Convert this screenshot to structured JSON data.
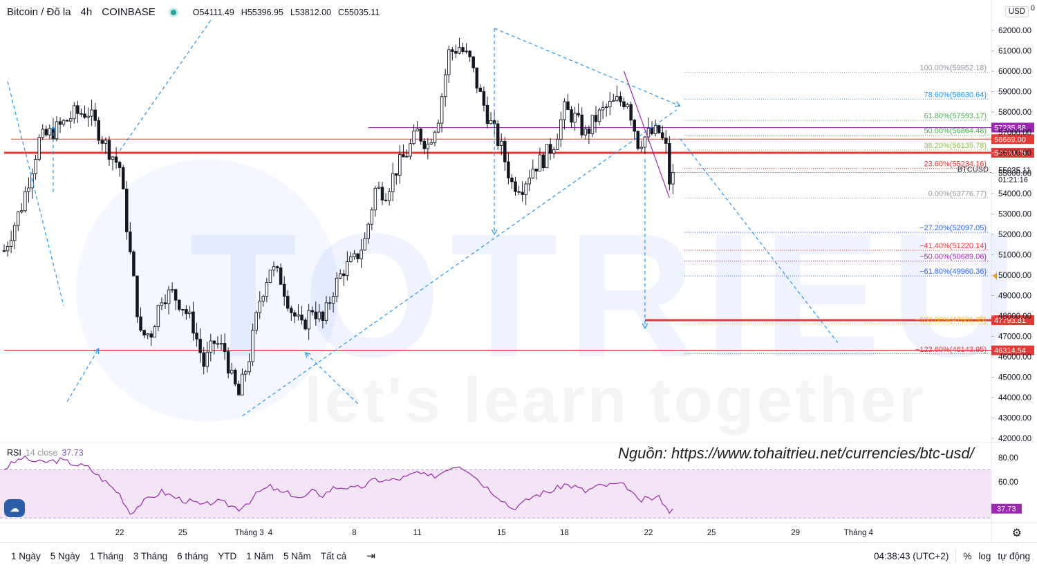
{
  "header": {
    "title": "Bitcoin / Đô la",
    "interval": "4h",
    "exchange": "COINBASE",
    "ohlc": [
      {
        "k": "O",
        "v": "54111.49"
      },
      {
        "k": "H",
        "v": "55396.95"
      },
      {
        "k": "L",
        "v": "53812.00"
      },
      {
        "k": "C",
        "v": "55035.11"
      }
    ],
    "currency": "USD",
    "currency_suffix": "0"
  },
  "watermark": {
    "brand": "TOTRIEU",
    "slogan": "let's learn together"
  },
  "source_note": "Nguồn: https://www.tohaitrieu.net/currencies/btc-usd/",
  "colors": {
    "up": "#ffffff",
    "down": "#131722",
    "level_red": "#e53935",
    "fib_blue": "#2962ff",
    "trend_blue": "#2196f3",
    "magenta": "#9c27b0",
    "rsi": "#9c27b0",
    "rsi_band": "#f3e5f5"
  },
  "chart_data": {
    "type": "candlestick",
    "symbol": "BTCUSD",
    "ylim": [
      41650,
      63300
    ],
    "y_ticks": [
      "62000.00",
      "61000.00",
      "60000.00",
      "59000.00",
      "58000.00",
      "57000.00",
      "56000.00",
      "55000.00",
      "54000.00",
      "53000.00",
      "52000.00",
      "51000.00",
      "50000.00",
      "49000.00",
      "48000.00",
      "47000.00",
      "46000.00",
      "45000.00",
      "44000.00",
      "43000.00",
      "42000.00"
    ],
    "x_ticks": [
      {
        "label": "22",
        "bar": 33
      },
      {
        "label": "25",
        "bar": 51
      },
      {
        "label": "Tháng 3",
        "bar": 70
      },
      {
        "label": "4",
        "bar": 76
      },
      {
        "label": "8",
        "bar": 100
      },
      {
        "label": "11",
        "bar": 118
      },
      {
        "label": "15",
        "bar": 142
      },
      {
        "label": "18",
        "bar": 160
      },
      {
        "label": "22",
        "bar": 184
      },
      {
        "label": "25",
        "bar": 202
      },
      {
        "label": "29",
        "bar": 226
      },
      {
        "label": "Tháng 4",
        "bar": 244
      }
    ],
    "anchors": [
      {
        "bar": 0,
        "price": 51200
      },
      {
        "bar": 5,
        "price": 53400
      },
      {
        "bar": 10,
        "price": 56600
      },
      {
        "bar": 16,
        "price": 57300
      },
      {
        "bar": 20,
        "price": 57900
      },
      {
        "bar": 24,
        "price": 58000
      },
      {
        "bar": 29,
        "price": 56400
      },
      {
        "bar": 33,
        "price": 55300
      },
      {
        "bar": 36,
        "price": 51000
      },
      {
        "bar": 39,
        "price": 47000
      },
      {
        "bar": 42,
        "price": 47200
      },
      {
        "bar": 45,
        "price": 49000
      },
      {
        "bar": 48,
        "price": 49100
      },
      {
        "bar": 51,
        "price": 48500
      },
      {
        "bar": 54,
        "price": 47500
      },
      {
        "bar": 57,
        "price": 45600
      },
      {
        "bar": 60,
        "price": 46700
      },
      {
        "bar": 63,
        "price": 46300
      },
      {
        "bar": 65,
        "price": 44900
      },
      {
        "bar": 67,
        "price": 44100
      },
      {
        "bar": 70,
        "price": 46000
      },
      {
        "bar": 73,
        "price": 48800
      },
      {
        "bar": 76,
        "price": 50400
      },
      {
        "bar": 79,
        "price": 49800
      },
      {
        "bar": 82,
        "price": 48300
      },
      {
        "bar": 85,
        "price": 47400
      },
      {
        "bar": 88,
        "price": 48400
      },
      {
        "bar": 91,
        "price": 47700
      },
      {
        "bar": 94,
        "price": 49300
      },
      {
        "bar": 97,
        "price": 50300
      },
      {
        "bar": 100,
        "price": 50700
      },
      {
        "bar": 103,
        "price": 51700
      },
      {
        "bar": 106,
        "price": 54200
      },
      {
        "bar": 109,
        "price": 54100
      },
      {
        "bar": 112,
        "price": 55200
      },
      {
        "bar": 115,
        "price": 56000
      },
      {
        "bar": 118,
        "price": 57000
      },
      {
        "bar": 121,
        "price": 56400
      },
      {
        "bar": 124,
        "price": 57800
      },
      {
        "bar": 127,
        "price": 60900
      },
      {
        "bar": 130,
        "price": 61200
      },
      {
        "bar": 133,
        "price": 60500
      },
      {
        "bar": 136,
        "price": 58800
      },
      {
        "bar": 139,
        "price": 57400
      },
      {
        "bar": 142,
        "price": 56200
      },
      {
        "bar": 145,
        "price": 54500
      },
      {
        "bar": 148,
        "price": 54400
      },
      {
        "bar": 151,
        "price": 55300
      },
      {
        "bar": 154,
        "price": 55700
      },
      {
        "bar": 157,
        "price": 56500
      },
      {
        "bar": 160,
        "price": 58100
      },
      {
        "bar": 163,
        "price": 57700
      },
      {
        "bar": 166,
        "price": 56900
      },
      {
        "bar": 169,
        "price": 57700
      },
      {
        "bar": 172,
        "price": 58200
      },
      {
        "bar": 175,
        "price": 58500
      },
      {
        "bar": 178,
        "price": 58600
      },
      {
        "bar": 181,
        "price": 56500
      },
      {
        "bar": 184,
        "price": 56900
      },
      {
        "bar": 187,
        "price": 57000
      },
      {
        "bar": 189,
        "price": 56200
      },
      {
        "bar": 190,
        "price": 54600
      },
      {
        "bar": 191,
        "price": 55035
      }
    ],
    "horizontal_levels": [
      {
        "price": 56000.75,
        "label": "56000.75",
        "width": 3,
        "x_from_bar": 0
      },
      {
        "price": 56669.0,
        "label": "56669.00",
        "width": 1,
        "x_from_bar": 2
      },
      {
        "price": 47793.81,
        "label": "47793.81",
        "width": 3,
        "x_from_bar": 183
      },
      {
        "price": 46314.54,
        "label": "46314.54",
        "width": 1.4,
        "x_from_bar": 0
      }
    ],
    "magenta_level": {
      "price": 57235.88,
      "label": "57235.88",
      "x_from_bar": 104
    },
    "fib_levels": [
      {
        "ratio": "100.00%",
        "price": 59952.18,
        "text": "100.00%(59952.18)",
        "color": "#9598a1"
      },
      {
        "ratio": "78.60%",
        "price": 58630.64,
        "text": "78.60%(58630.64)",
        "color": "#2196f3"
      },
      {
        "ratio": "61.80%",
        "price": 57593.17,
        "text": "61.80%(57593.17)",
        "color": "#4caf50"
      },
      {
        "ratio": "50.00%",
        "price": 56864.48,
        "text": "50.00%(56864.48)",
        "color": "#4caf50"
      },
      {
        "ratio": "38.20%",
        "price": 56135.78,
        "text": "38.20%(56135.78)",
        "color": "#8bc34a"
      },
      {
        "ratio": "23.60%",
        "price": 55234.16,
        "text": "23.60%(55234.16)",
        "color": "#e53935"
      },
      {
        "ratio": "0.00%",
        "price": 53776.77,
        "text": "0.00%(53776.77)",
        "color": "#9598a1"
      },
      {
        "ratio": "-27.20%",
        "price": 52097.05,
        "text": "−27.20%(52097.05)",
        "color": "#2962ff"
      },
      {
        "ratio": "-41.40%",
        "price": 51220.14,
        "text": "−41.40%(51220.14)",
        "color": "#e53935"
      },
      {
        "ratio": "-50.00%",
        "price": 50689.06,
        "text": "−50.00%(50689.06)",
        "color": "#9c27b0"
      },
      {
        "ratio": "-61.80%",
        "price": 49960.36,
        "text": "−61.80%(49960.36)",
        "color": "#2962ff"
      },
      {
        "ratio": "-100.00%",
        "price": 47601.35,
        "text": "−100.00%(47601.35)",
        "color": "#ffb300"
      },
      {
        "ratio": "-123.60%",
        "price": 46143.95,
        "text": "−123.60%(46143.95)",
        "color": "#e53935"
      }
    ],
    "current": {
      "symbol": "BTCUSD",
      "price": "55035.11",
      "countdown": "01:21:16"
    },
    "orange_marker_price": 49960,
    "trendlines": [
      {
        "from": [
          68,
          43100
        ],
        "to": [
          192,
          58100
        ],
        "style": "dashed",
        "color": "#2196f3"
      },
      {
        "from": [
          140,
          62100
        ],
        "to": [
          193,
          58300
        ],
        "style": "dashed",
        "color": "#2196f3",
        "arrow": "end"
      },
      {
        "from": [
          193,
          56700
        ],
        "to": [
          238,
          46700
        ],
        "style": "dashed",
        "color": "#2196f3"
      },
      {
        "from": [
          33,
          56100
        ],
        "to": [
          59,
          62500
        ],
        "style": "dashed",
        "color": "#2196f3"
      },
      {
        "from": [
          1,
          59500
        ],
        "to": [
          17,
          48500
        ],
        "style": "dashed",
        "color": "#2196f3"
      },
      {
        "from": [
          18,
          43800
        ],
        "to": [
          27,
          46400
        ],
        "style": "dashed",
        "color": "#2196f3",
        "arrow": "end"
      },
      {
        "from": [
          101,
          43700
        ],
        "to": [
          86,
          46200
        ],
        "style": "dashed",
        "color": "#2196f3",
        "arrow": "end"
      },
      {
        "from": [
          140,
          62100
        ],
        "to": [
          140,
          52000
        ],
        "style": "dashed",
        "color": "#2196f3",
        "arrow": "end"
      },
      {
        "from": [
          183,
          55700
        ],
        "to": [
          183,
          47400
        ],
        "style": "dashed",
        "color": "#2196f3",
        "arrow": "end"
      },
      {
        "from": [
          14,
          57300
        ],
        "to": [
          14,
          54000
        ],
        "style": "dashed",
        "color": "#2196f3",
        "arrow": "start"
      },
      {
        "from": [
          177,
          60000
        ],
        "to": [
          190,
          53800
        ],
        "style": "solid",
        "color": "#9c27b0"
      }
    ]
  },
  "rsi": {
    "name": "RSI",
    "params": "14 close",
    "value": "37.73",
    "ylim": [
      20,
      85
    ],
    "y_ticks": [
      "80.00",
      "60.00"
    ],
    "upper": 70,
    "lower": 30,
    "anchors": [
      {
        "bar": 0,
        "v": 71
      },
      {
        "bar": 5,
        "v": 80
      },
      {
        "bar": 10,
        "v": 76
      },
      {
        "bar": 16,
        "v": 78
      },
      {
        "bar": 20,
        "v": 75
      },
      {
        "bar": 24,
        "v": 72
      },
      {
        "bar": 29,
        "v": 60
      },
      {
        "bar": 33,
        "v": 50
      },
      {
        "bar": 36,
        "v": 34
      },
      {
        "bar": 39,
        "v": 42
      },
      {
        "bar": 42,
        "v": 47
      },
      {
        "bar": 45,
        "v": 52
      },
      {
        "bar": 48,
        "v": 48
      },
      {
        "bar": 51,
        "v": 45
      },
      {
        "bar": 54,
        "v": 43
      },
      {
        "bar": 57,
        "v": 40
      },
      {
        "bar": 60,
        "v": 44
      },
      {
        "bar": 63,
        "v": 42
      },
      {
        "bar": 65,
        "v": 40
      },
      {
        "bar": 67,
        "v": 38
      },
      {
        "bar": 70,
        "v": 44
      },
      {
        "bar": 73,
        "v": 52
      },
      {
        "bar": 76,
        "v": 56
      },
      {
        "bar": 79,
        "v": 51
      },
      {
        "bar": 82,
        "v": 50
      },
      {
        "bar": 85,
        "v": 46
      },
      {
        "bar": 88,
        "v": 52
      },
      {
        "bar": 91,
        "v": 49
      },
      {
        "bar": 94,
        "v": 55
      },
      {
        "bar": 97,
        "v": 56
      },
      {
        "bar": 100,
        "v": 54
      },
      {
        "bar": 103,
        "v": 57
      },
      {
        "bar": 106,
        "v": 62
      },
      {
        "bar": 109,
        "v": 61
      },
      {
        "bar": 112,
        "v": 62
      },
      {
        "bar": 115,
        "v": 64
      },
      {
        "bar": 118,
        "v": 68
      },
      {
        "bar": 121,
        "v": 64
      },
      {
        "bar": 124,
        "v": 66
      },
      {
        "bar": 127,
        "v": 72
      },
      {
        "bar": 130,
        "v": 74
      },
      {
        "bar": 133,
        "v": 69
      },
      {
        "bar": 136,
        "v": 60
      },
      {
        "bar": 139,
        "v": 53
      },
      {
        "bar": 142,
        "v": 46
      },
      {
        "bar": 145,
        "v": 38
      },
      {
        "bar": 148,
        "v": 42
      },
      {
        "bar": 151,
        "v": 48
      },
      {
        "bar": 154,
        "v": 51
      },
      {
        "bar": 157,
        "v": 53
      },
      {
        "bar": 160,
        "v": 58
      },
      {
        "bar": 163,
        "v": 56
      },
      {
        "bar": 166,
        "v": 52
      },
      {
        "bar": 169,
        "v": 56
      },
      {
        "bar": 172,
        "v": 57
      },
      {
        "bar": 175,
        "v": 58
      },
      {
        "bar": 178,
        "v": 56
      },
      {
        "bar": 181,
        "v": 44
      },
      {
        "bar": 184,
        "v": 46
      },
      {
        "bar": 187,
        "v": 47
      },
      {
        "bar": 189,
        "v": 41
      },
      {
        "bar": 190,
        "v": 33
      },
      {
        "bar": 191,
        "v": 37.73
      }
    ]
  },
  "toolbar": {
    "timeframes": [
      "1 Ngày",
      "5 Ngày",
      "1 Tháng",
      "3 Tháng",
      "6 tháng",
      "YTD",
      "1 Năm",
      "5 Năm",
      "Tất cả"
    ],
    "clock": "04:38:43 (UTC+2)",
    "percent": "%",
    "log": "log",
    "auto": "tự động"
  }
}
